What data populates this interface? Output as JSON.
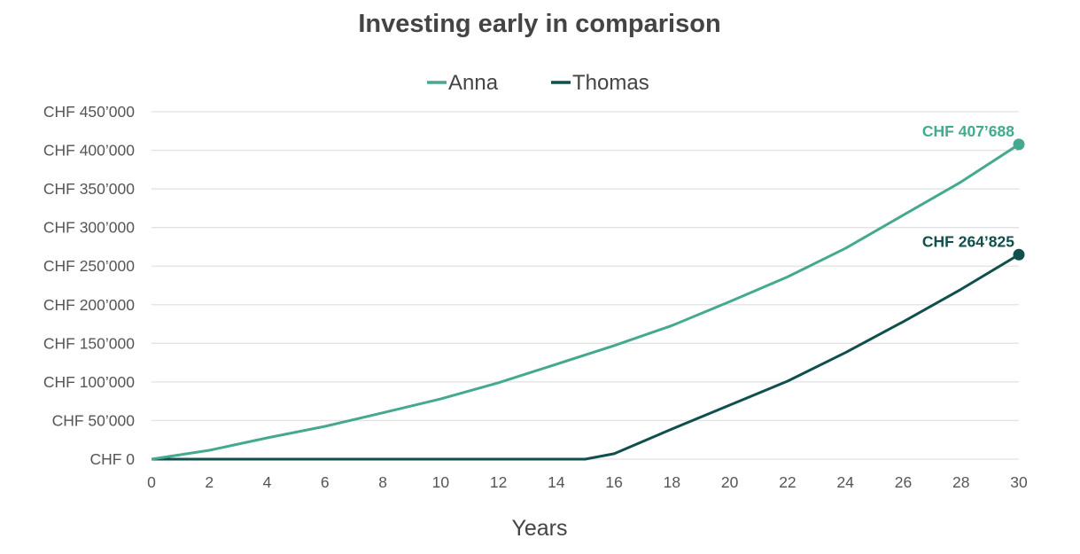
{
  "chart_data": {
    "type": "line",
    "title": "Investing early in comparison",
    "xlabel": "Years",
    "ylabel": "",
    "xlim": [
      0,
      30
    ],
    "ylim": [
      0,
      450000
    ],
    "x_ticks": [
      0,
      2,
      4,
      6,
      8,
      10,
      12,
      14,
      16,
      18,
      20,
      22,
      24,
      26,
      28,
      30
    ],
    "y_ticks": [
      0,
      50000,
      100000,
      150000,
      200000,
      250000,
      300000,
      350000,
      400000,
      450000
    ],
    "y_tick_labels": [
      "CHF 0",
      "CHF 50’000",
      "CHF 100’000",
      "CHF 150’000",
      "CHF 200’000",
      "CHF 250’000",
      "CHF 300’000",
      "CHF 350’000",
      "CHF 400’000",
      "CHF 450’000"
    ],
    "grid": "horizontal",
    "legend_placement": "top",
    "series": [
      {
        "name": "Anna",
        "color": "#45a98f",
        "x": [
          0,
          2,
          4,
          6,
          8,
          10,
          12,
          14,
          16,
          18,
          20,
          22,
          24,
          26,
          28,
          30
        ],
        "values": [
          0,
          11500,
          27500,
          42500,
          60000,
          78000,
          99000,
          123000,
          147000,
          173000,
          204000,
          236000,
          273000,
          316000,
          359000,
          407688
        ],
        "end_label": "CHF 407’688"
      },
      {
        "name": "Thomas",
        "color": "#0f4f4c",
        "x": [
          0,
          2,
          4,
          6,
          8,
          10,
          12,
          14,
          15,
          16,
          18,
          20,
          22,
          24,
          26,
          28,
          30
        ],
        "values": [
          0,
          0,
          0,
          0,
          0,
          0,
          0,
          0,
          0,
          7000,
          39000,
          70000,
          101000,
          138000,
          178000,
          220000,
          264825
        ],
        "end_label": "CHF 264’825"
      }
    ]
  }
}
